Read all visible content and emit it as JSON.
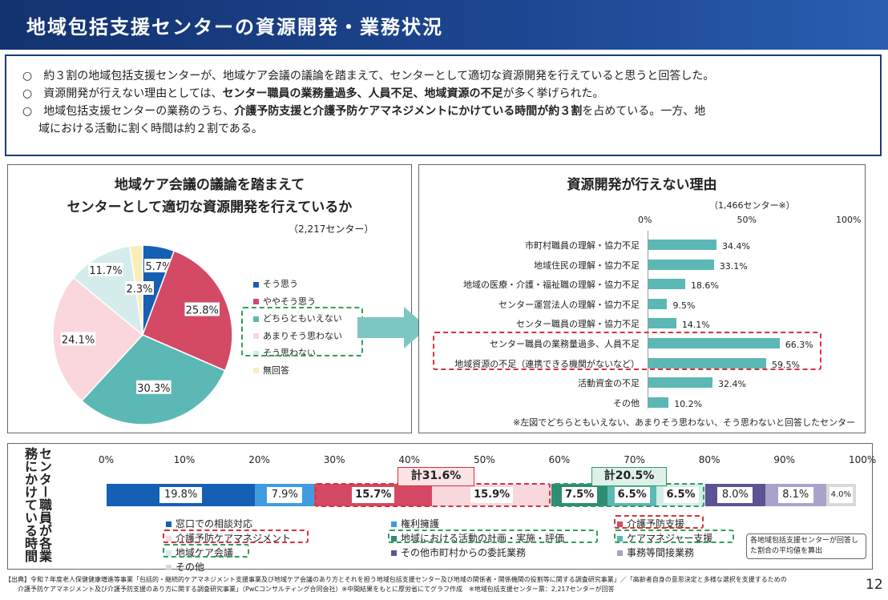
{
  "header": {
    "title": "地域包括支援センターの資源開発・業務状況"
  },
  "summary": {
    "bullet": "○",
    "line1": "約３割の地域包括支援センターが、地域ケア会議の議論を踏まえて、センターとして適切な資源開発を行えていると思うと回答した。",
    "line2_a": "資源開発が行えない理由としては、",
    "line2_b": "センター職員の業務量過多、人員不足、地域資源の不足",
    "line2_c": "が多く挙げられた。",
    "line3_a": "地域包括支援センターの業務のうち、",
    "line3_b": "介護予防支援と介護予防ケアマネジメントにかけている時間が約３割",
    "line3_c": "を占めている。一方、地",
    "line4": "域における活動に割く時間は約２割である。"
  },
  "chart_data": [
    {
      "type": "pie",
      "title": "地域ケア会議の議論を踏まえて",
      "subtitle": "センターとして適切な資源開発を行えているか",
      "note": "（2,217センター）",
      "categories": [
        "そう思う",
        "ややそう思う",
        "どちらともいえない",
        "あまりそう思わない",
        "そう思わない",
        "無回答"
      ],
      "values": [
        5.7,
        25.8,
        30.3,
        24.1,
        11.7,
        2.3
      ],
      "labels": [
        "5.7%",
        "25.8%",
        "30.3%",
        "24.1%",
        "11.7%",
        "2.3%"
      ],
      "colors": [
        "#1560b5",
        "#d44a65",
        "#5bb8b4",
        "#f9d7dd",
        "#d5ecec",
        "#faedb7"
      ]
    },
    {
      "type": "bar",
      "orientation": "horizontal",
      "title": "資源開発が行えない理由",
      "note": "（1,466センター※）",
      "xlim": [
        0,
        100
      ],
      "ticks": [
        "0%",
        "50%",
        "100%"
      ],
      "categories": [
        "市町村職員の理解・協力不足",
        "地域住民の理解・協力不足",
        "地域の医療・介護・福祉職の理解・協力不足",
        "センター運営法人の理解・協力不足",
        "センター職員の理解・協力不足",
        "センター職員の業務量過多、人員不足",
        "地域資源の不足（連携できる機関がないなど）",
        "活動資金の不足",
        "その他"
      ],
      "values": [
        34.4,
        33.1,
        18.6,
        9.5,
        14.1,
        66.3,
        59.5,
        32.4,
        10.2
      ],
      "labels": [
        "34.4%",
        "33.1%",
        "18.6%",
        "9.5%",
        "14.1%",
        "66.3%",
        "59.5%",
        "32.4%",
        "10.2%"
      ],
      "footnote": "※左図でどちらともいえない、あまりそう思わない、そう思わないと回答したセンター"
    },
    {
      "type": "bar",
      "orientation": "stacked-horizontal",
      "ylabel": "センター職員が各業務にかけている時間",
      "xlim": [
        0,
        100
      ],
      "ticks": [
        "0%",
        "10%",
        "20%",
        "30%",
        "40%",
        "50%",
        "60%",
        "70%",
        "80%",
        "90%",
        "100%"
      ],
      "series": [
        {
          "name": "窓口での相談対応",
          "value": 19.8,
          "color": "#1560b5",
          "label": "19.8%"
        },
        {
          "name": "権利擁護",
          "value": 7.9,
          "color": "#3f9be0",
          "label": "7.9%"
        },
        {
          "name": "介護予防支援",
          "value": 15.7,
          "color": "#d44a65",
          "label": "15.7%"
        },
        {
          "name": "介護予防ケアマネジメント",
          "value": 15.9,
          "color": "#f9d7dd",
          "label": "15.9%"
        },
        {
          "name": "地域における活動の計画・実施・評価",
          "value": 7.5,
          "color": "#2f8c74",
          "label": "7.5%"
        },
        {
          "name": "ケアマネジャー支援",
          "value": 6.5,
          "color": "#5bb8b4",
          "label": "6.5%"
        },
        {
          "name": "地域ケア会議",
          "value": 6.5,
          "color": "#d5ecec",
          "label": "6.5%"
        },
        {
          "name": "その他市町村からの委託業務",
          "value": 8.0,
          "color": "#5b5394",
          "label": "8.0%"
        },
        {
          "name": "事務等間接業務",
          "value": 8.1,
          "color": "#a8a3cc",
          "label": "8.1%"
        },
        {
          "name": "その他",
          "value": 4.0,
          "color": "#d9d9d9",
          "label": "4.0%"
        }
      ],
      "totals": [
        {
          "label": "計31.6%"
        },
        {
          "label": "計20.5%"
        }
      ],
      "note": "各地域包括支援センターが回答した割合の平均値を算出"
    }
  ],
  "footer": {
    "line1": "【出典】令和７年度老人保健健康増進等事業「包括的・継続的ケアマネジメント支援事業及び地域ケア会議のあり方とそれを担う地域包括支援センター及び地域の関係者・関係機関の役割等に関する調査研究事業」／「高齢者自身の意思決定と多様な選択を支援するための",
    "line2": "介護予防ケアマネジメント及び介護予防支援のあり方に関する調査研究事業」（PwCコンサルティング合同会社）※中間結果をもとに厚労省にてグラフ作成　※地域包括支援センター票：2,217センターが回答"
  },
  "page_number": "12"
}
